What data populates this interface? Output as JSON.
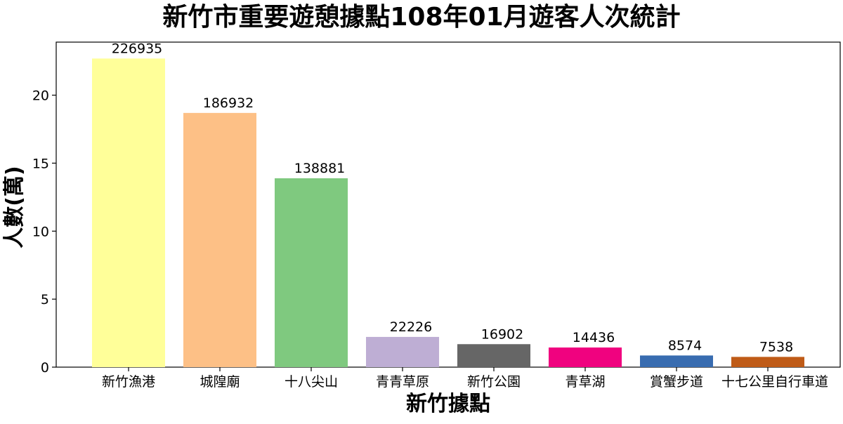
{
  "chart_data": {
    "type": "bar",
    "title": "新竹市重要遊憩據點108年01月遊客人次統計",
    "xlabel": "新竹據點",
    "ylabel": "人數(萬)",
    "categories": [
      "新竹漁港",
      "城隍廟",
      "十八尖山",
      "青青草原",
      "新竹公園",
      "青草湖",
      "賞蟹步道",
      "十七公里自行車道"
    ],
    "values": [
      226935,
      186932,
      138881,
      22226,
      16902,
      14436,
      8574,
      7538
    ],
    "value_labels": [
      "226935",
      "186932",
      "138881",
      "22226",
      "16902",
      "14436",
      "8574",
      "7538"
    ],
    "colors": [
      "#ffff99",
      "#fdc086",
      "#7fc97f",
      "#beaed4",
      "#666666",
      "#f0027f",
      "#386cb0",
      "#bf5b17"
    ],
    "ylim": [
      0,
      23.9
    ],
    "yticks": [
      0,
      5,
      10,
      15,
      20
    ],
    "ytick_labels": [
      "0",
      "5",
      "10",
      "15",
      "20"
    ],
    "grid": false,
    "legend": "none"
  }
}
